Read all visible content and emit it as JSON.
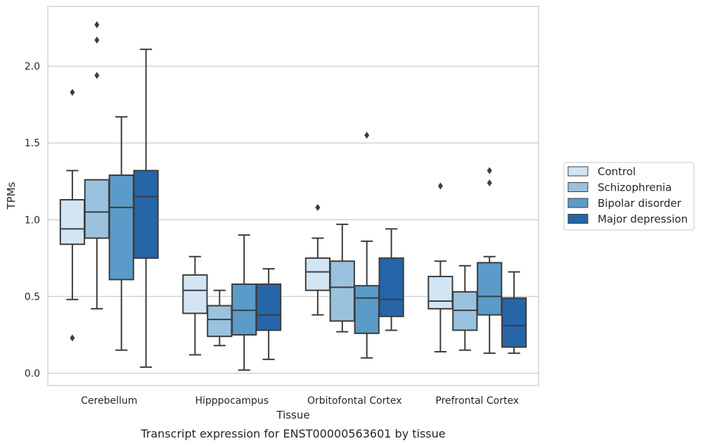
{
  "chart_data": {
    "type": "boxplot",
    "xlabel": "Tissue",
    "ylabel": "TPMs",
    "caption": "Transcript expression for ENST00000563601 by tissue",
    "ylim": [
      -0.08,
      2.39
    ],
    "yticks": [
      0.0,
      0.5,
      1.0,
      1.5,
      2.0
    ],
    "ytick_labels": [
      "0.0",
      "0.5",
      "1.0",
      "1.5",
      "2.0"
    ],
    "grid": "horizontal",
    "legend_position": "right",
    "categories": [
      "Cerebellum",
      "Hipppocampus",
      "Orbitofontal Cortex",
      "Prefrontal Cortex"
    ],
    "series": [
      {
        "name": "Control",
        "color": "#d3e4f3",
        "boxes": [
          {
            "whislo": 0.48,
            "q1": 0.84,
            "med": 0.94,
            "q3": 1.13,
            "whishi": 1.32,
            "fliers": [
              1.83,
              0.23
            ]
          },
          {
            "whislo": 0.12,
            "q1": 0.39,
            "med": 0.54,
            "q3": 0.64,
            "whishi": 0.76,
            "fliers": []
          },
          {
            "whislo": 0.38,
            "q1": 0.54,
            "med": 0.66,
            "q3": 0.75,
            "whishi": 0.88,
            "fliers": [
              1.08
            ]
          },
          {
            "whislo": 0.14,
            "q1": 0.42,
            "med": 0.47,
            "q3": 0.63,
            "whishi": 0.73,
            "fliers": [
              1.22
            ]
          }
        ]
      },
      {
        "name": "Schizophrenia",
        "color": "#9ac2de",
        "boxes": [
          {
            "whislo": 0.42,
            "q1": 0.88,
            "med": 1.05,
            "q3": 1.26,
            "whishi": 1.26,
            "fliers": [
              2.27,
              2.17,
              1.94
            ]
          },
          {
            "whislo": 0.18,
            "q1": 0.24,
            "med": 0.35,
            "q3": 0.44,
            "whishi": 0.54,
            "fliers": []
          },
          {
            "whislo": 0.27,
            "q1": 0.34,
            "med": 0.56,
            "q3": 0.73,
            "whishi": 0.97,
            "fliers": []
          },
          {
            "whislo": 0.15,
            "q1": 0.28,
            "med": 0.41,
            "q3": 0.53,
            "whishi": 0.7,
            "fliers": []
          }
        ]
      },
      {
        "name": "Bipolar disorder",
        "color": "#5a9bc9",
        "boxes": [
          {
            "whislo": 0.15,
            "q1": 0.61,
            "med": 1.08,
            "q3": 1.29,
            "whishi": 1.67,
            "fliers": []
          },
          {
            "whislo": 0.02,
            "q1": 0.25,
            "med": 0.41,
            "q3": 0.58,
            "whishi": 0.9,
            "fliers": []
          },
          {
            "whislo": 0.1,
            "q1": 0.26,
            "med": 0.49,
            "q3": 0.57,
            "whishi": 0.86,
            "fliers": [
              1.55
            ]
          },
          {
            "whislo": 0.13,
            "q1": 0.38,
            "med": 0.5,
            "q3": 0.72,
            "whishi": 0.76,
            "fliers": [
              1.32,
              1.24
            ]
          }
        ]
      },
      {
        "name": "Major depression",
        "color": "#2565a8",
        "boxes": [
          {
            "whislo": 0.04,
            "q1": 0.75,
            "med": 1.15,
            "q3": 1.32,
            "whishi": 2.11,
            "fliers": []
          },
          {
            "whislo": 0.09,
            "q1": 0.28,
            "med": 0.38,
            "q3": 0.58,
            "whishi": 0.68,
            "fliers": []
          },
          {
            "whislo": 0.28,
            "q1": 0.37,
            "med": 0.48,
            "q3": 0.75,
            "whishi": 0.94,
            "fliers": []
          },
          {
            "whislo": 0.13,
            "q1": 0.17,
            "med": 0.31,
            "q3": 0.49,
            "whishi": 0.66,
            "fliers": []
          }
        ]
      }
    ]
  }
}
